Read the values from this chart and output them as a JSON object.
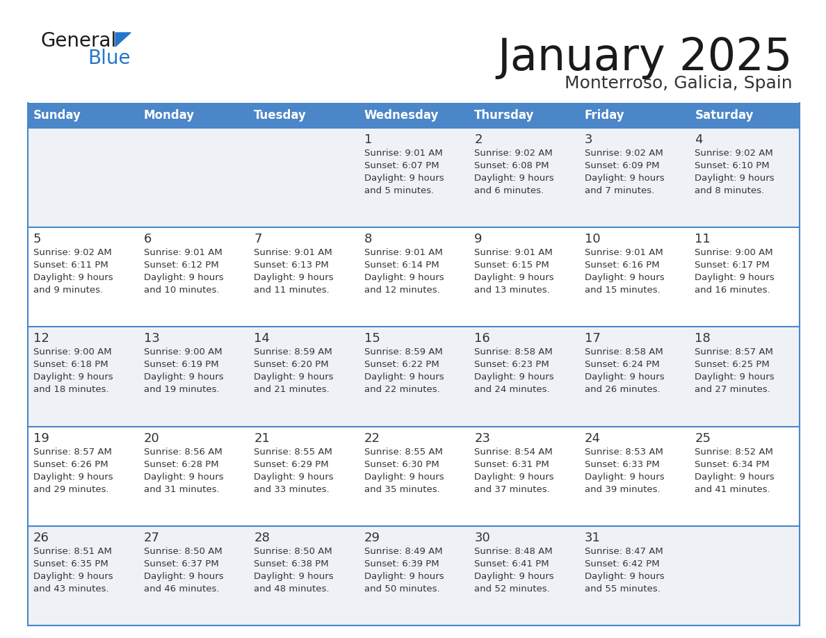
{
  "title": "January 2025",
  "subtitle": "Monterroso, Galicia, Spain",
  "header_bg": "#4a86c8",
  "header_text_color": "#ffffff",
  "days_of_week": [
    "Sunday",
    "Monday",
    "Tuesday",
    "Wednesday",
    "Thursday",
    "Friday",
    "Saturday"
  ],
  "weeks": [
    [
      {
        "day": "",
        "sunrise": "",
        "sunset": "",
        "daylight": ""
      },
      {
        "day": "",
        "sunrise": "",
        "sunset": "",
        "daylight": ""
      },
      {
        "day": "",
        "sunrise": "",
        "sunset": "",
        "daylight": ""
      },
      {
        "day": "1",
        "sunrise": "9:01 AM",
        "sunset": "6:07 PM",
        "daylight": "9 hours\nand 5 minutes."
      },
      {
        "day": "2",
        "sunrise": "9:02 AM",
        "sunset": "6:08 PM",
        "daylight": "9 hours\nand 6 minutes."
      },
      {
        "day": "3",
        "sunrise": "9:02 AM",
        "sunset": "6:09 PM",
        "daylight": "9 hours\nand 7 minutes."
      },
      {
        "day": "4",
        "sunrise": "9:02 AM",
        "sunset": "6:10 PM",
        "daylight": "9 hours\nand 8 minutes."
      }
    ],
    [
      {
        "day": "5",
        "sunrise": "9:02 AM",
        "sunset": "6:11 PM",
        "daylight": "9 hours\nand 9 minutes."
      },
      {
        "day": "6",
        "sunrise": "9:01 AM",
        "sunset": "6:12 PM",
        "daylight": "9 hours\nand 10 minutes."
      },
      {
        "day": "7",
        "sunrise": "9:01 AM",
        "sunset": "6:13 PM",
        "daylight": "9 hours\nand 11 minutes."
      },
      {
        "day": "8",
        "sunrise": "9:01 AM",
        "sunset": "6:14 PM",
        "daylight": "9 hours\nand 12 minutes."
      },
      {
        "day": "9",
        "sunrise": "9:01 AM",
        "sunset": "6:15 PM",
        "daylight": "9 hours\nand 13 minutes."
      },
      {
        "day": "10",
        "sunrise": "9:01 AM",
        "sunset": "6:16 PM",
        "daylight": "9 hours\nand 15 minutes."
      },
      {
        "day": "11",
        "sunrise": "9:00 AM",
        "sunset": "6:17 PM",
        "daylight": "9 hours\nand 16 minutes."
      }
    ],
    [
      {
        "day": "12",
        "sunrise": "9:00 AM",
        "sunset": "6:18 PM",
        "daylight": "9 hours\nand 18 minutes."
      },
      {
        "day": "13",
        "sunrise": "9:00 AM",
        "sunset": "6:19 PM",
        "daylight": "9 hours\nand 19 minutes."
      },
      {
        "day": "14",
        "sunrise": "8:59 AM",
        "sunset": "6:20 PM",
        "daylight": "9 hours\nand 21 minutes."
      },
      {
        "day": "15",
        "sunrise": "8:59 AM",
        "sunset": "6:22 PM",
        "daylight": "9 hours\nand 22 minutes."
      },
      {
        "day": "16",
        "sunrise": "8:58 AM",
        "sunset": "6:23 PM",
        "daylight": "9 hours\nand 24 minutes."
      },
      {
        "day": "17",
        "sunrise": "8:58 AM",
        "sunset": "6:24 PM",
        "daylight": "9 hours\nand 26 minutes."
      },
      {
        "day": "18",
        "sunrise": "8:57 AM",
        "sunset": "6:25 PM",
        "daylight": "9 hours\nand 27 minutes."
      }
    ],
    [
      {
        "day": "19",
        "sunrise": "8:57 AM",
        "sunset": "6:26 PM",
        "daylight": "9 hours\nand 29 minutes."
      },
      {
        "day": "20",
        "sunrise": "8:56 AM",
        "sunset": "6:28 PM",
        "daylight": "9 hours\nand 31 minutes."
      },
      {
        "day": "21",
        "sunrise": "8:55 AM",
        "sunset": "6:29 PM",
        "daylight": "9 hours\nand 33 minutes."
      },
      {
        "day": "22",
        "sunrise": "8:55 AM",
        "sunset": "6:30 PM",
        "daylight": "9 hours\nand 35 minutes."
      },
      {
        "day": "23",
        "sunrise": "8:54 AM",
        "sunset": "6:31 PM",
        "daylight": "9 hours\nand 37 minutes."
      },
      {
        "day": "24",
        "sunrise": "8:53 AM",
        "sunset": "6:33 PM",
        "daylight": "9 hours\nand 39 minutes."
      },
      {
        "day": "25",
        "sunrise": "8:52 AM",
        "sunset": "6:34 PM",
        "daylight": "9 hours\nand 41 minutes."
      }
    ],
    [
      {
        "day": "26",
        "sunrise": "8:51 AM",
        "sunset": "6:35 PM",
        "daylight": "9 hours\nand 43 minutes."
      },
      {
        "day": "27",
        "sunrise": "8:50 AM",
        "sunset": "6:37 PM",
        "daylight": "9 hours\nand 46 minutes."
      },
      {
        "day": "28",
        "sunrise": "8:50 AM",
        "sunset": "6:38 PM",
        "daylight": "9 hours\nand 48 minutes."
      },
      {
        "day": "29",
        "sunrise": "8:49 AM",
        "sunset": "6:39 PM",
        "daylight": "9 hours\nand 50 minutes."
      },
      {
        "day": "30",
        "sunrise": "8:48 AM",
        "sunset": "6:41 PM",
        "daylight": "9 hours\nand 52 minutes."
      },
      {
        "day": "31",
        "sunrise": "8:47 AM",
        "sunset": "6:42 PM",
        "daylight": "9 hours\nand 55 minutes."
      },
      {
        "day": "",
        "sunrise": "",
        "sunset": "",
        "daylight": ""
      }
    ]
  ],
  "cell_bg_light": "#eef2f7",
  "cell_bg_white": "#ffffff",
  "row_separator_color": "#4a86c8",
  "text_color_day": "#333333",
  "text_color_info": "#333333",
  "logo_general_color": "#1a1a1a",
  "logo_blue_color": "#2277cc",
  "logo_triangle_color": "#2277cc"
}
